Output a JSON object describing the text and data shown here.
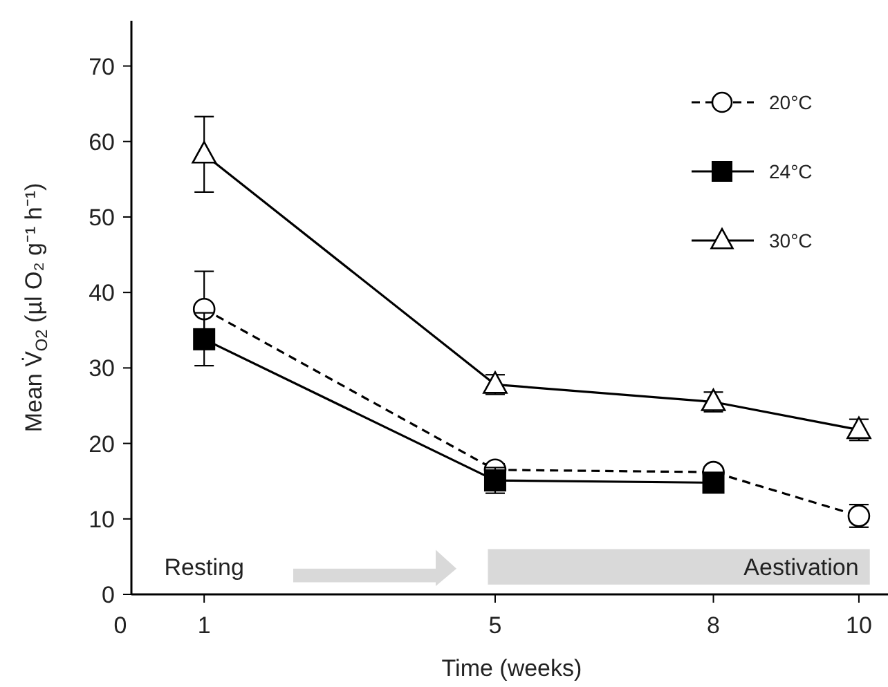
{
  "chart_data": {
    "type": "line",
    "xlabel": "Time (weeks)",
    "ylabel": "Mean V̇$_{O2}$ (µl O₂ g⁻¹ h⁻¹)",
    "x": [
      1,
      5,
      8,
      10
    ],
    "xlim": [
      0,
      10.4
    ],
    "xticks": [
      0,
      1,
      5,
      8,
      10
    ],
    "ylim": [
      0,
      76
    ],
    "yticks": [
      0,
      10,
      20,
      30,
      40,
      50,
      60,
      70
    ],
    "legend": "top right",
    "series": [
      {
        "name": "20°C",
        "color": "#000000",
        "marker": "circle",
        "line_style": "dashed",
        "values": [
          37.8,
          16.5,
          16.2,
          10.4
        ],
        "errors": [
          5,
          0.8,
          null,
          1.5
        ]
      },
      {
        "name": "24°C",
        "color": "#000000",
        "marker": "square",
        "line_style": "solid",
        "values": [
          33.8,
          15.1,
          14.8,
          null
        ],
        "errors": [
          3.5,
          1.7,
          null,
          null
        ]
      },
      {
        "name": "30°C",
        "color": "#000000",
        "marker": "triangle",
        "line_style": "solid",
        "values": [
          58.3,
          27.8,
          25.5,
          21.8
        ],
        "errors": [
          5,
          1.3,
          1.3,
          1.4
        ]
      }
    ],
    "bands": [
      {
        "axis": "x",
        "from": 4.9,
        "to": 10.15,
        "label": "Aestivation",
        "color": "#d9d9d9"
      }
    ],
    "annotations": [
      "Resting"
    ]
  }
}
